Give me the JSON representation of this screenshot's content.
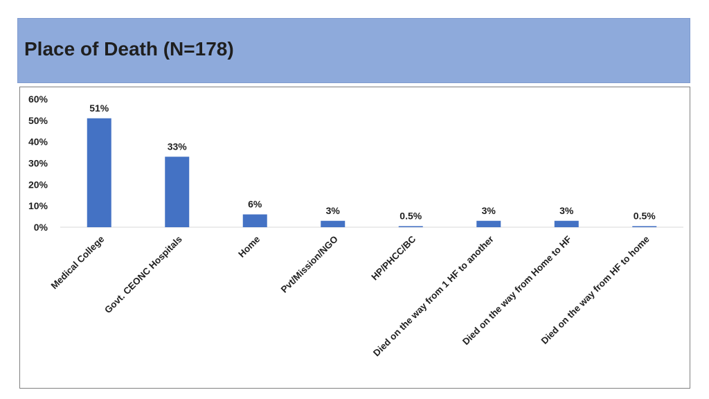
{
  "title": "Place of Death (N=178)",
  "colors": {
    "banner": "#8eaadb",
    "bar": "#4472c4",
    "axis": "#d9d9d9"
  },
  "chart_data": {
    "type": "bar",
    "title": "",
    "xlabel": "",
    "ylabel": "",
    "ylim": [
      0,
      60
    ],
    "yticks": [
      {
        "value": 0,
        "label": "0%"
      },
      {
        "value": 10,
        "label": "10%"
      },
      {
        "value": 20,
        "label": "20%"
      },
      {
        "value": 30,
        "label": "30%"
      },
      {
        "value": 40,
        "label": "40%"
      },
      {
        "value": 50,
        "label": "50%"
      },
      {
        "value": 60,
        "label": "60%"
      }
    ],
    "grid": false,
    "categories": [
      "Medical College",
      "Govt. CEONC Hospitals",
      "Home",
      "Pvt/Mission/NGO",
      "HP/PHCC/BC",
      "Died on the way from 1 HF to another",
      "Died on the way from Home to HF",
      "Died on the way from HF to home"
    ],
    "values": [
      51,
      33,
      6,
      3,
      0.5,
      3,
      3,
      0.5
    ],
    "data_labels": [
      "51%",
      "33%",
      "6%",
      "3%",
      "0.5%",
      "3%",
      "3%",
      "0.5%"
    ]
  }
}
